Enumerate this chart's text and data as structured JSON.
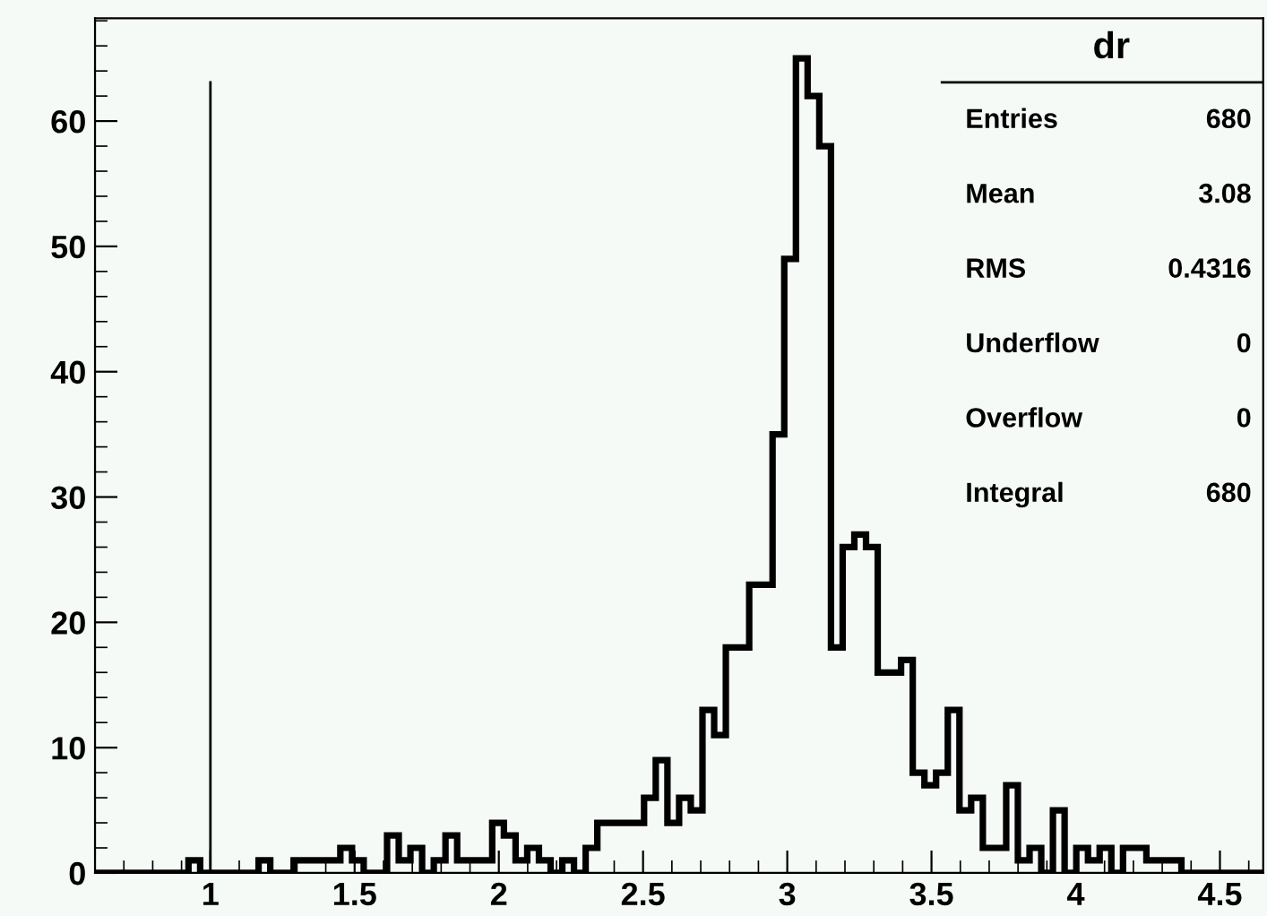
{
  "chart_data": {
    "type": "histogram",
    "bins": [
      0.6,
      0.6405,
      0.681,
      0.7215,
      0.762,
      0.8025,
      0.843,
      0.8835,
      0.924,
      0.9645,
      1.005,
      1.0455,
      1.086,
      1.1265,
      1.167,
      1.2075,
      1.248,
      1.2885,
      1.329,
      1.3695,
      1.41,
      1.4505,
      1.491,
      1.5315,
      1.572,
      1.6125,
      1.653,
      1.6935,
      1.734,
      1.7745,
      1.815,
      1.8555,
      1.896,
      1.9365,
      1.977,
      2.0175,
      2.058,
      2.0985,
      2.139,
      2.1795,
      2.22,
      2.2605,
      2.301,
      2.3415,
      2.382,
      2.4225,
      2.463,
      2.5035,
      2.544,
      2.5845,
      2.625,
      2.6655,
      2.706,
      2.7465,
      2.787,
      2.8275,
      2.868,
      2.9085,
      2.949,
      2.9895,
      3.03,
      3.0705,
      3.111,
      3.1515,
      3.192,
      3.2325,
      3.273,
      3.3135,
      3.354,
      3.3945,
      3.435,
      3.4755,
      3.516,
      3.5565,
      3.597,
      3.6375,
      3.678,
      3.7185,
      3.759,
      3.7995,
      3.84,
      3.8805,
      3.921,
      3.9615,
      4.002,
      4.0425,
      4.083,
      4.1235,
      4.164,
      4.2045,
      4.245,
      4.2855,
      4.326,
      4.3665,
      4.407,
      4.4475,
      4.488,
      4.5285,
      4.569,
      4.6095,
      4.65
    ],
    "values": [
      0,
      0,
      0,
      0,
      0,
      0,
      0,
      0,
      1,
      0,
      0,
      0,
      0,
      0,
      1,
      0,
      0,
      1,
      1,
      1,
      1,
      2,
      1,
      0,
      0,
      3,
      1,
      2,
      0,
      1,
      3,
      1,
      1,
      1,
      4,
      3,
      1,
      2,
      1,
      0,
      1,
      0,
      2,
      4,
      4,
      4,
      4,
      6,
      9,
      4,
      6,
      5,
      13,
      11,
      18,
      18,
      23,
      23,
      35,
      49,
      65,
      62,
      58,
      18,
      26,
      27,
      26,
      16,
      16,
      17,
      8,
      7,
      8,
      13,
      5,
      6,
      2,
      2,
      7,
      1,
      2,
      0,
      5,
      0,
      2,
      1,
      2,
      0,
      2,
      2,
      1,
      1,
      1,
      0,
      0,
      0,
      0,
      0,
      0,
      0
    ],
    "color": "#000000",
    "xlim": [
      0.6,
      4.65
    ],
    "xticks": [
      1,
      1.5,
      2,
      2.5,
      3,
      3.5,
      4,
      4.5
    ],
    "ylim": [
      0,
      68.2
    ],
    "yticks": [
      0,
      10,
      20,
      30,
      40,
      50,
      60
    ],
    "ref_lines": [
      {
        "axis": "x",
        "value": 1,
        "color": "#000000"
      }
    ],
    "annotations": [
      "dr",
      "Entries",
      "680",
      "Mean",
      "3.08",
      "RMS",
      "0.4316",
      "Underflow",
      "0",
      "Overflow",
      "0",
      "Integral",
      "680"
    ],
    "grid": false,
    "legend": false
  }
}
